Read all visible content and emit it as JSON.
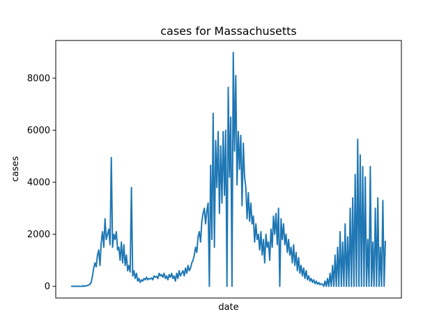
{
  "chart_data": {
    "type": "line",
    "title": "cases for Massachusetts",
    "xlabel": "date",
    "ylabel": "cases",
    "ylim": [
      -450,
      9450
    ],
    "yticks": [
      0,
      2000,
      4000,
      6000,
      8000
    ],
    "xticks": [],
    "grid": false,
    "series": [
      {
        "color": "#1f77b4",
        "values": [
          0,
          0,
          0,
          0,
          0,
          0,
          0,
          0,
          0,
          0,
          20,
          0,
          20,
          30,
          50,
          80,
          150,
          400,
          700,
          900,
          750,
          1200,
          1400,
          800,
          1700,
          2100,
          1500,
          2600,
          1800,
          2000,
          2200,
          1600,
          4950,
          1500,
          2000,
          1800,
          2100,
          1400,
          1500,
          1000,
          1700,
          900,
          1600,
          800,
          1200,
          600,
          800,
          550,
          3800,
          400,
          600,
          300,
          500,
          200,
          300,
          150,
          250,
          200,
          300,
          250,
          350,
          250,
          300,
          280,
          320,
          250,
          400,
          350,
          380,
          300,
          500,
          400,
          450,
          350,
          500,
          300,
          400,
          250,
          450,
          350,
          500,
          300,
          400,
          200,
          500,
          300,
          600,
          400,
          500,
          600,
          400,
          700,
          500,
          800,
          600,
          700,
          900,
          1000,
          1200,
          1500,
          1300,
          1900,
          2100,
          1700,
          2500,
          2800,
          3000,
          2400,
          2900,
          3200,
          0,
          4650,
          1800,
          6650,
          1500,
          5600,
          3800,
          5950,
          2800,
          5400,
          3200,
          5950,
          3500,
          6000,
          0,
          7650,
          4200,
          6500,
          0,
          8990,
          5200,
          8100,
          3900,
          5950,
          4500,
          5800,
          3100,
          5500,
          4200,
          3800,
          2600,
          3600,
          2500,
          3200,
          2400,
          2700,
          1700,
          2400,
          1800,
          2000,
          1400,
          2100,
          1200,
          1800,
          900,
          2000,
          1500,
          1700,
          1000,
          2200,
          1500,
          2700,
          2000,
          2800,
          1600,
          3000,
          0,
          2600,
          1800,
          2400,
          1600,
          2000,
          1300,
          1800,
          1200,
          1500,
          900,
          1600,
          800,
          1300,
          600,
          1100,
          500,
          800,
          400,
          700,
          300,
          600,
          250,
          400,
          200,
          300,
          150,
          250,
          100,
          200,
          80,
          150,
          60,
          100,
          80,
          0,
          200,
          0,
          300,
          0,
          500,
          0,
          800,
          0,
          1200,
          0,
          1500,
          0,
          2100,
          0,
          1700,
          0,
          2400,
          0,
          1900,
          0,
          3000,
          0,
          3400,
          0,
          4300,
          0,
          5650,
          0,
          5050,
          0,
          4600,
          0,
          4200,
          0,
          1800,
          0,
          4600,
          0,
          1700,
          0,
          3000,
          0,
          3400,
          0,
          1500,
          0,
          3300,
          0,
          1750
        ]
      }
    ]
  }
}
